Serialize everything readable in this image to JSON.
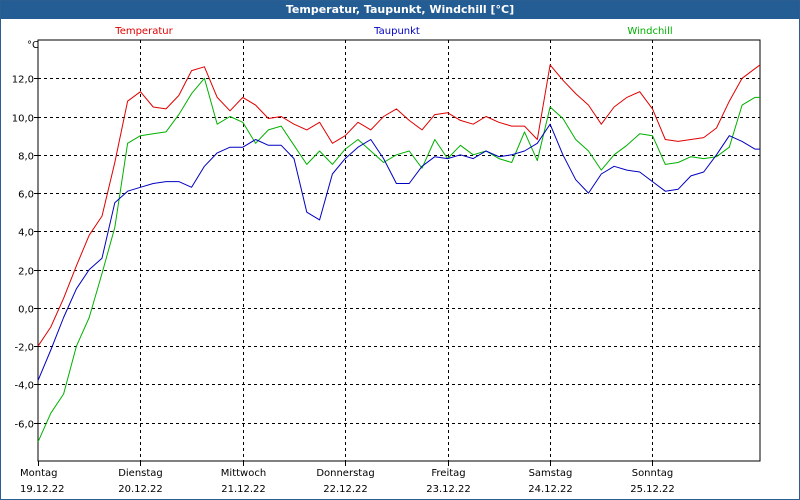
{
  "window": {
    "title": "Temperatur, Taupunkt, Windchill [°C]"
  },
  "chart_data": {
    "type": "line",
    "ylabel": "°C",
    "ylim": [
      -8,
      14
    ],
    "yticks": [
      -6,
      -4,
      -2,
      0,
      2,
      4,
      6,
      8,
      10,
      12
    ],
    "ytick_labels": [
      "-6,0",
      "-4,0",
      "-2,0",
      "0,0",
      "2,0",
      "4,0",
      "6,0",
      "8,0",
      "10,0",
      "12,0"
    ],
    "xlim": [
      0,
      7.05
    ],
    "grid": true,
    "legend": "top",
    "x_ticks": [
      {
        "day": "Montag",
        "date": "19.12.22"
      },
      {
        "day": "Dienstag",
        "date": "20.12.22"
      },
      {
        "day": "Mittwoch",
        "date": "21.12.22"
      },
      {
        "day": "Donnerstag",
        "date": "22.12.22"
      },
      {
        "day": "Freitag",
        "date": "23.12.22"
      },
      {
        "day": "Samstag",
        "date": "24.12.22"
      },
      {
        "day": "Sonntag",
        "date": "25.12.22"
      }
    ],
    "x": [
      0,
      0.125,
      0.25,
      0.375,
      0.5,
      0.625,
      0.75,
      0.875,
      1,
      1.125,
      1.25,
      1.375,
      1.5,
      1.625,
      1.75,
      1.875,
      2,
      2.125,
      2.25,
      2.375,
      2.5,
      2.625,
      2.75,
      2.875,
      3,
      3.125,
      3.25,
      3.375,
      3.5,
      3.625,
      3.75,
      3.875,
      4,
      4.125,
      4.25,
      4.375,
      4.5,
      4.625,
      4.75,
      4.875,
      5,
      5.125,
      5.25,
      5.375,
      5.5,
      5.625,
      5.75,
      5.875,
      6,
      6.125,
      6.25,
      6.375,
      6.5,
      6.625,
      6.75,
      6.875,
      7,
      7.05
    ],
    "series": [
      {
        "name": "Temperatur",
        "color": "#e00000",
        "values": [
          -2.0,
          -1.0,
          0.5,
          2.2,
          3.8,
          4.8,
          7.6,
          10.8,
          11.3,
          10.5,
          10.4,
          11.1,
          12.4,
          12.6,
          11.0,
          10.3,
          11.0,
          10.6,
          9.9,
          10.0,
          9.6,
          9.3,
          9.7,
          8.6,
          9.0,
          9.7,
          9.3,
          10.0,
          10.4,
          9.8,
          9.3,
          10.1,
          10.2,
          9.8,
          9.6,
          10.0,
          9.7,
          9.5,
          9.5,
          8.8,
          12.7,
          11.9,
          11.2,
          10.6,
          9.6,
          10.5,
          11.0,
          11.3,
          10.4,
          8.8,
          8.7,
          8.8,
          8.9,
          9.4,
          10.8,
          12.0,
          12.5,
          12.7
        ]
      },
      {
        "name": "Taupunkt",
        "color": "#0000c0",
        "values": [
          -3.8,
          -2.2,
          -0.5,
          1.0,
          2.0,
          2.6,
          5.5,
          6.1,
          6.3,
          6.5,
          6.6,
          6.6,
          6.3,
          7.4,
          8.1,
          8.4,
          8.4,
          8.8,
          8.5,
          8.5,
          7.8,
          5.0,
          4.6,
          7.0,
          7.8,
          8.4,
          8.8,
          7.8,
          6.5,
          6.5,
          7.4,
          7.9,
          7.8,
          8.0,
          7.8,
          8.2,
          7.9,
          8.0,
          8.2,
          8.6,
          9.6,
          8.0,
          6.7,
          6.0,
          7.0,
          7.4,
          7.2,
          7.1,
          6.6,
          6.1,
          6.2,
          6.9,
          7.1,
          8.0,
          9.0,
          8.7,
          8.3,
          8.3
        ]
      },
      {
        "name": "Windchill",
        "color": "#00b000",
        "values": [
          -7.0,
          -5.5,
          -4.5,
          -2.0,
          -0.5,
          1.8,
          4.2,
          8.6,
          9.0,
          9.1,
          9.2,
          10.1,
          11.2,
          12.0,
          9.6,
          10.0,
          9.7,
          8.6,
          9.3,
          9.5,
          8.5,
          7.5,
          8.2,
          7.5,
          8.3,
          8.8,
          8.2,
          7.6,
          8.0,
          8.2,
          7.3,
          8.8,
          7.8,
          8.5,
          8.0,
          8.2,
          7.8,
          7.6,
          9.2,
          7.7,
          10.5,
          9.9,
          8.8,
          8.2,
          7.2,
          8.0,
          8.5,
          9.1,
          9.0,
          7.5,
          7.6,
          7.9,
          7.8,
          7.9,
          8.4,
          10.6,
          11.0,
          11.0
        ]
      }
    ]
  }
}
